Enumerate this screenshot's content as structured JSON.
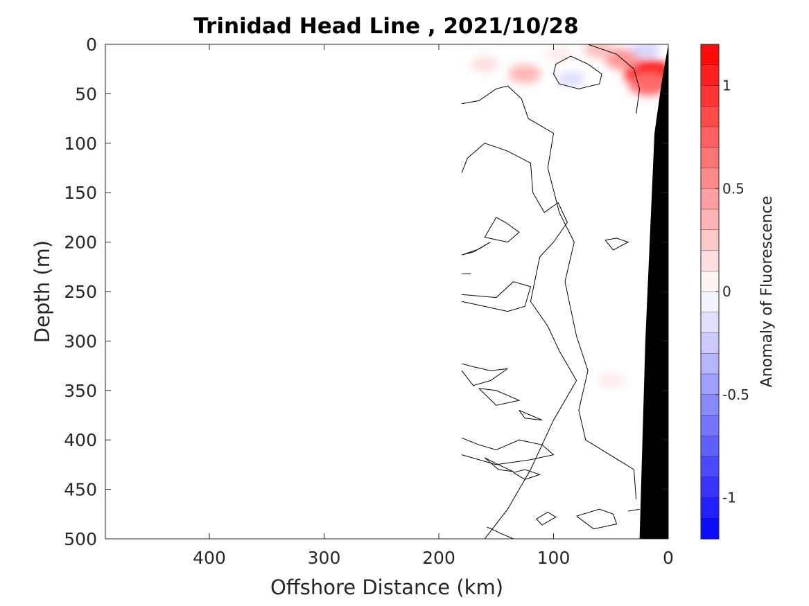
{
  "chart_data": {
    "type": "contour",
    "title": "Trinidad Head Line , 2021/10/28",
    "xlabel": "Offshore Distance (km)",
    "ylabel": "Depth (m)",
    "xlim": [
      490,
      0
    ],
    "ylim": [
      0,
      500
    ],
    "x_reversed": true,
    "y_reversed": true,
    "x_ticks": [
      400,
      300,
      200,
      100,
      0
    ],
    "y_ticks": [
      0,
      50,
      100,
      150,
      200,
      250,
      300,
      350,
      400,
      450,
      500
    ],
    "colorbar": {
      "label": "Anomaly of Fluorescence",
      "range": [
        -1.2,
        1.2
      ],
      "levels": 24,
      "ticks": [
        1,
        0.5,
        0,
        -0.5,
        -1
      ],
      "tick_labels": [
        "1",
        "0.5",
        "0",
        "-0.5",
        "-1"
      ],
      "high_color": "#ff0000",
      "low_color": "#0000ff",
      "mid_color": "#ffffff"
    },
    "data_extent_km": [
      0,
      180
    ],
    "anomaly_patches": [
      {
        "x": 17,
        "y": 30,
        "value": 1.1
      },
      {
        "x": 17,
        "y": 40,
        "value": 0.7
      },
      {
        "x": 40,
        "y": 15,
        "value": 0.5
      },
      {
        "x": 60,
        "y": 5,
        "value": 0.3
      },
      {
        "x": 125,
        "y": 30,
        "value": 0.35
      },
      {
        "x": 160,
        "y": 20,
        "value": 0.15
      },
      {
        "x": 95,
        "y": 10,
        "value": 0.1
      },
      {
        "x": 85,
        "y": 35,
        "value": -0.15
      },
      {
        "x": 20,
        "y": 5,
        "value": -0.2
      },
      {
        "x": 50,
        "y": 340,
        "value": 0.1
      }
    ],
    "zero_contours": [
      [
        [
          180,
          60
        ],
        [
          165,
          57
        ],
        [
          150,
          45
        ],
        [
          140,
          42
        ],
        [
          128,
          55
        ],
        [
          122,
          75
        ],
        [
          100,
          90
        ],
        [
          105,
          125
        ],
        [
          95,
          170
        ],
        [
          82,
          200
        ],
        [
          90,
          240
        ],
        [
          80,
          295
        ],
        [
          70,
          330
        ],
        [
          78,
          370
        ],
        [
          72,
          400
        ],
        [
          30,
          430
        ],
        [
          28,
          460
        ]
      ],
      [
        [
          70,
          0
        ],
        [
          45,
          10
        ],
        [
          30,
          25
        ],
        [
          25,
          45
        ],
        [
          28,
          70
        ]
      ],
      [
        [
          98,
          20
        ],
        [
          85,
          12
        ],
        [
          70,
          20
        ],
        [
          58,
          30
        ],
        [
          60,
          40
        ],
        [
          78,
          45
        ],
        [
          95,
          40
        ],
        [
          100,
          30
        ],
        [
          98,
          20
        ]
      ],
      [
        [
          180,
          130
        ],
        [
          175,
          115
        ],
        [
          160,
          100
        ],
        [
          140,
          108
        ],
        [
          120,
          120
        ],
        [
          118,
          150
        ],
        [
          108,
          170
        ],
        [
          96,
          160
        ],
        [
          88,
          180
        ],
        [
          100,
          200
        ],
        [
          112,
          215
        ],
        [
          120,
          260
        ],
        [
          105,
          285
        ],
        [
          95,
          310
        ],
        [
          80,
          340
        ],
        [
          100,
          380
        ],
        [
          120,
          430
        ],
        [
          140,
          470
        ],
        [
          160,
          500
        ]
      ],
      [
        [
          150,
          175
        ],
        [
          142,
          180
        ],
        [
          130,
          190
        ],
        [
          140,
          200
        ],
        [
          160,
          195
        ],
        [
          150,
          175
        ]
      ],
      [
        [
          180,
          213
        ],
        [
          165,
          207
        ],
        [
          155,
          200
        ],
        [
          170,
          210
        ],
        [
          180,
          213
        ]
      ],
      [
        [
          55,
          198
        ],
        [
          45,
          196
        ],
        [
          35,
          200
        ],
        [
          48,
          208
        ],
        [
          55,
          198
        ]
      ],
      [
        [
          180,
          232
        ],
        [
          172,
          232
        ]
      ],
      [
        [
          180,
          253
        ],
        [
          150,
          256
        ],
        [
          135,
          240
        ],
        [
          120,
          245
        ],
        [
          125,
          265
        ],
        [
          140,
          270
        ],
        [
          180,
          260
        ]
      ],
      [
        [
          180,
          323
        ],
        [
          170,
          326
        ],
        [
          155,
          330
        ],
        [
          140,
          328
        ],
        [
          155,
          340
        ],
        [
          170,
          345
        ],
        [
          180,
          330
        ]
      ],
      [
        [
          165,
          348
        ],
        [
          150,
          350
        ],
        [
          130,
          360
        ],
        [
          150,
          365
        ],
        [
          165,
          348
        ]
      ],
      [
        [
          130,
          370
        ],
        [
          120,
          375
        ],
        [
          110,
          380
        ],
        [
          125,
          378
        ],
        [
          130,
          370
        ]
      ],
      [
        [
          160,
          418
        ],
        [
          148,
          425
        ],
        [
          135,
          432
        ],
        [
          148,
          430
        ],
        [
          160,
          418
        ]
      ],
      [
        [
          180,
          398
        ],
        [
          165,
          405
        ],
        [
          150,
          410
        ],
        [
          130,
          400
        ],
        [
          110,
          405
        ],
        [
          100,
          415
        ],
        [
          120,
          420
        ],
        [
          150,
          425
        ],
        [
          180,
          415
        ]
      ],
      [
        [
          135,
          433
        ],
        [
          125,
          430
        ],
        [
          112,
          435
        ],
        [
          125,
          440
        ],
        [
          135,
          433
        ]
      ],
      [
        [
          115,
          480
        ],
        [
          105,
          473
        ],
        [
          98,
          478
        ],
        [
          110,
          486
        ],
        [
          115,
          480
        ]
      ],
      [
        [
          80,
          477
        ],
        [
          60,
          470
        ],
        [
          48,
          475
        ],
        [
          45,
          485
        ],
        [
          65,
          490
        ],
        [
          80,
          477
        ]
      ],
      [
        [
          158,
          488
        ],
        [
          145,
          495
        ],
        [
          135,
          500
        ]
      ],
      [
        [
          35,
          472
        ],
        [
          25,
          470
        ]
      ]
    ],
    "bathymetry": [
      [
        0,
        0
      ],
      [
        6,
        40
      ],
      [
        12,
        90
      ],
      [
        20,
        300
      ],
      [
        25,
        500
      ],
      [
        0,
        500
      ]
    ]
  }
}
